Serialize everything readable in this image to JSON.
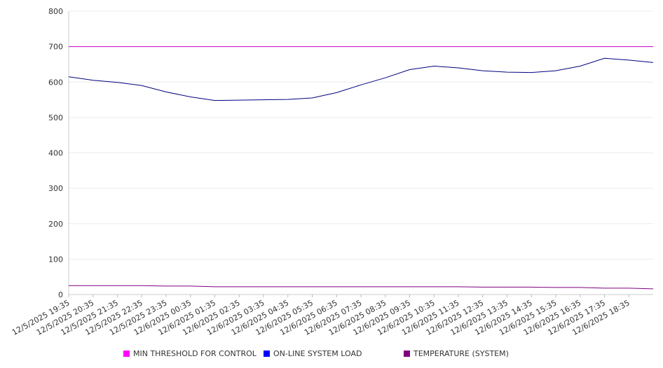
{
  "chart_data": {
    "type": "line",
    "title": "",
    "xlabel": "",
    "ylabel": "",
    "ylim": [
      0,
      800
    ],
    "yticks": [
      0,
      100,
      200,
      300,
      400,
      500,
      600,
      700,
      800
    ],
    "grid": "horizontal",
    "legend_position": "bottom",
    "x_tick_labels": [
      "12/5/2025 19:35",
      "12/5/2025 20:35",
      "12/5/2025 21:35",
      "12/5/2025 22:35",
      "12/5/2025 23:35",
      "12/6/2025 00:35",
      "12/6/2025 01:35",
      "12/6/2025 02:35",
      "12/6/2025 03:35",
      "12/6/2025 04:35",
      "12/6/2025 05:35",
      "12/6/2025 06:35",
      "12/6/2025 07:35",
      "12/6/2025 08:35",
      "12/6/2025 09:35",
      "12/6/2025 10:35",
      "12/6/2025 11:35",
      "12/6/2025 12:35",
      "12/6/2025 13:35",
      "12/6/2025 14:35",
      "12/6/2025 15:35",
      "12/6/2025 16:35",
      "12/6/2025 17:35",
      "12/6/2025 18:35"
    ],
    "series": [
      {
        "name": "MIN THRESHOLD FOR CONTROL",
        "color": "#cc00cc",
        "legend_color": "#ff00ff",
        "values": [
          700,
          700,
          700,
          700,
          700,
          700,
          700,
          700,
          700,
          700,
          700,
          700,
          700,
          700,
          700,
          700,
          700,
          700,
          700,
          700,
          700,
          700,
          700,
          700,
          700
        ]
      },
      {
        "name": "ON-LINE SYSTEM LOAD",
        "color": "#000080",
        "legend_color": "#0000ff",
        "values": [
          615,
          605,
          599,
          590,
          572,
          558,
          548,
          549,
          550,
          551,
          555,
          570,
          592,
          612,
          635,
          645,
          640,
          632,
          628,
          627,
          632,
          645,
          667,
          662,
          655
        ]
      },
      {
        "name": "TEMPERATURE (SYSTEM)",
        "color": "#800080",
        "legend_color": "#800080",
        "values": [
          25,
          25,
          25,
          25,
          24,
          24,
          22,
          22,
          22,
          22,
          22,
          22,
          22,
          22,
          22,
          22,
          22,
          21,
          21,
          21,
          20,
          20,
          18,
          18,
          16
        ]
      }
    ]
  }
}
